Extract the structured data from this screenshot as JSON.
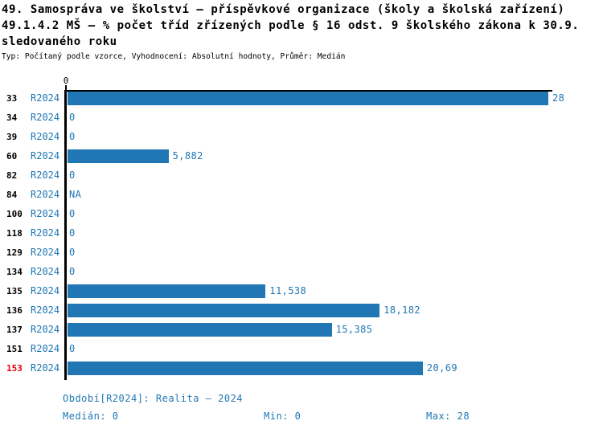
{
  "header": {
    "title_line1": "49. Samospráva ve školství – příspěvkové organizace (školy a školská zařízení)",
    "title_line2": "49.1.4.2 MŠ – % počet tříd zřízených podle § 16 odst. 9 školského zákona k 30.9.",
    "title_line3": "sledovaného roku",
    "subtitle": "Typ: Počítaný podle vzorce, Vyhodnocení: Absolutní hodnoty, Průměr: Medián"
  },
  "chart": {
    "axis_tick_label": "0",
    "rows": [
      {
        "category": "33",
        "period": "R2024",
        "value": 28,
        "display": "28",
        "highlight": false
      },
      {
        "category": "34",
        "period": "R2024",
        "value": 0,
        "display": "0",
        "highlight": false
      },
      {
        "category": "39",
        "period": "R2024",
        "value": 0,
        "display": "0",
        "highlight": false
      },
      {
        "category": "60",
        "period": "R2024",
        "value": 5.882,
        "display": "5,882",
        "highlight": false
      },
      {
        "category": "82",
        "period": "R2024",
        "value": 0,
        "display": "0",
        "highlight": false
      },
      {
        "category": "84",
        "period": "R2024",
        "value": null,
        "display": "NA",
        "highlight": false
      },
      {
        "category": "100",
        "period": "R2024",
        "value": 0,
        "display": "0",
        "highlight": false
      },
      {
        "category": "118",
        "period": "R2024",
        "value": 0,
        "display": "0",
        "highlight": false
      },
      {
        "category": "129",
        "period": "R2024",
        "value": 0,
        "display": "0",
        "highlight": false
      },
      {
        "category": "134",
        "period": "R2024",
        "value": 0,
        "display": "0",
        "highlight": false
      },
      {
        "category": "135",
        "period": "R2024",
        "value": 11.538,
        "display": "11,538",
        "highlight": false
      },
      {
        "category": "136",
        "period": "R2024",
        "value": 18.182,
        "display": "18,182",
        "highlight": false
      },
      {
        "category": "137",
        "period": "R2024",
        "value": 15.385,
        "display": "15,385",
        "highlight": false
      },
      {
        "category": "151",
        "period": "R2024",
        "value": 0,
        "display": "0",
        "highlight": false
      },
      {
        "category": "153",
        "period": "R2024",
        "value": 20.69,
        "display": "20,69",
        "highlight": true
      }
    ]
  },
  "chart_data": {
    "type": "bar",
    "orientation": "horizontal",
    "title": "49.1.4.2 MŠ – % počet tříd zřízených podle § 16 odst. 9 školského zákona k 30.9. sledovaného roku",
    "categories": [
      "33",
      "34",
      "39",
      "60",
      "82",
      "84",
      "100",
      "118",
      "129",
      "134",
      "135",
      "136",
      "137",
      "151",
      "153"
    ],
    "series": [
      {
        "name": "R2024",
        "values": [
          28,
          0,
          0,
          5.882,
          0,
          null,
          0,
          0,
          0,
          0,
          11.538,
          18.182,
          15.385,
          0,
          20.69
        ]
      }
    ],
    "value_labels": [
      "28",
      "0",
      "0",
      "5,882",
      "0",
      "NA",
      "0",
      "0",
      "0",
      "0",
      "11,538",
      "18,182",
      "15,385",
      "0",
      "20,69"
    ],
    "xlim": [
      0,
      28
    ],
    "x_ticks": [
      0
    ],
    "grid": false,
    "legend": false,
    "bar_color": "#2077b4",
    "highlighted_category": "153",
    "stats": {
      "median": 0,
      "min": 0,
      "max": 28
    }
  },
  "footer": {
    "period_line": "Období[R2024]: Realita – 2024",
    "median": "Medián: 0",
    "min": "Min: 0",
    "max": "Max: 28"
  },
  "colors": {
    "bar": "#2077b4",
    "text_blue": "#1f77b4",
    "highlight_red": "#e8000f",
    "axis": "#000000",
    "background": "#ffffff"
  }
}
